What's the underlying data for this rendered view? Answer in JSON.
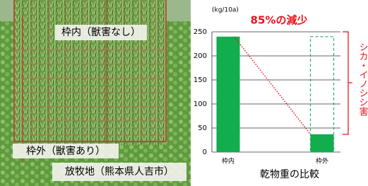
{
  "photo": {
    "labels": [
      "枠内（獣害なし）",
      "枠外（獣害あり）",
      "放牧地（熊本県人吉市）"
    ]
  },
  "chart_data": {
    "type": "bar",
    "title": "85%の減少",
    "y_label": "(kg/10a)",
    "x_label": "乾物重の比較",
    "annotation": "シカ・イノシシ害",
    "categories": [
      "枠内",
      "枠外"
    ],
    "values": [
      240,
      37
    ],
    "color": "#12ad4c",
    "ylim": [
      0,
      250
    ],
    "yticks": [
      0,
      50,
      100,
      150,
      200,
      250
    ],
    "grid": true
  }
}
